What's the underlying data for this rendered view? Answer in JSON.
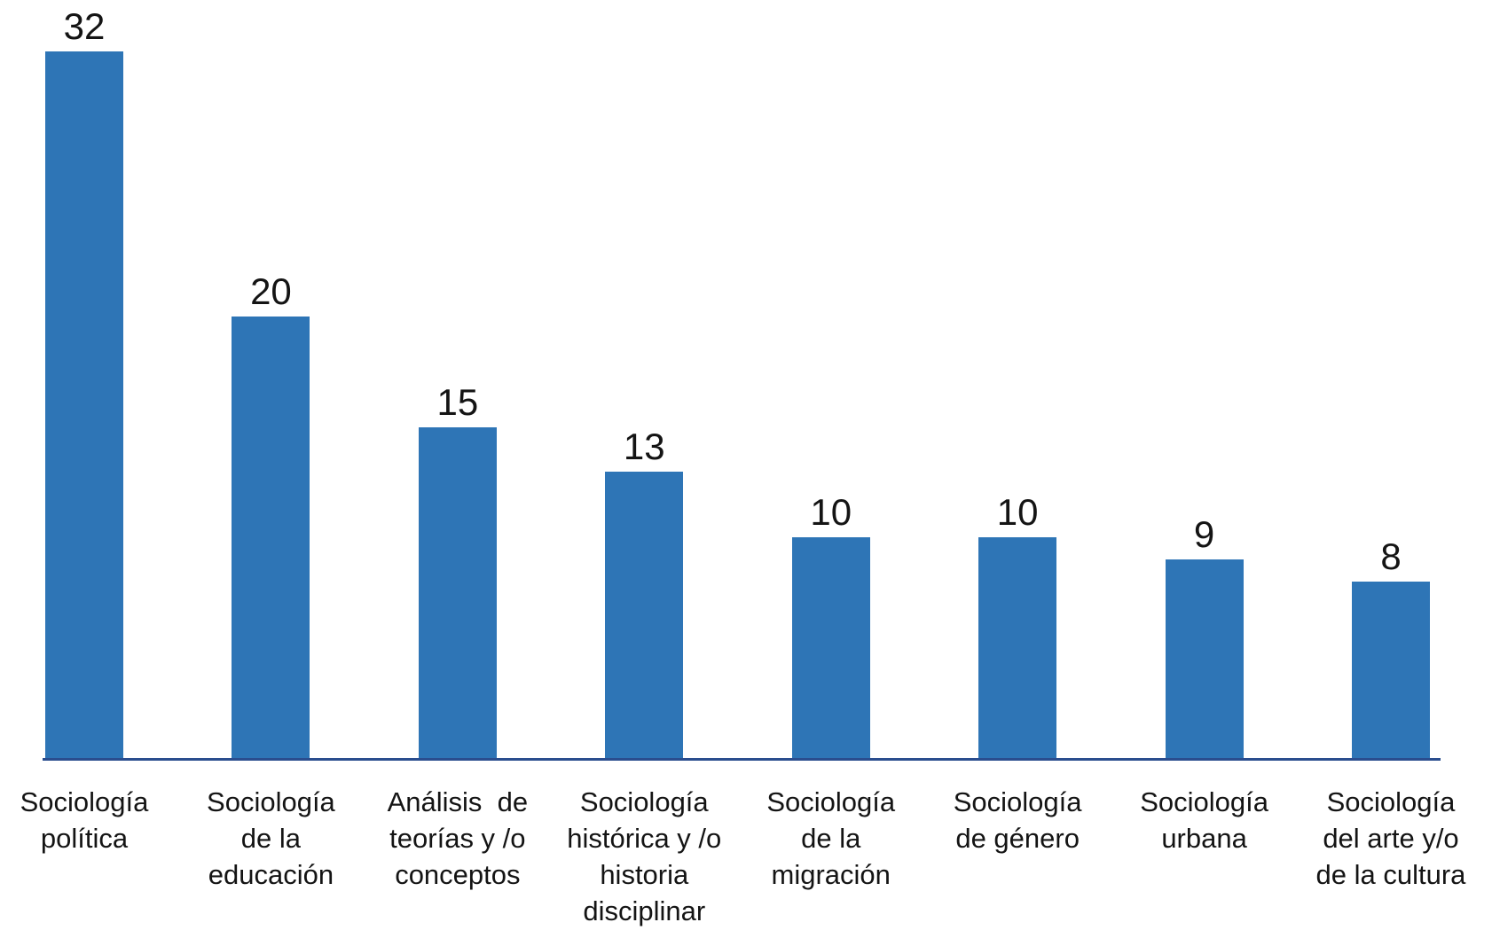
{
  "page": {
    "background": "#FFFFFF"
  },
  "chart_data": {
    "type": "bar",
    "title": "",
    "xlabel": "",
    "ylabel": "",
    "categories": [
      "Sociología política",
      "Sociología de la educación",
      "Análisis de teorías y /o conceptos",
      "Sociología histórica y /o historia disciplinar",
      "Sociología de la migración",
      "Sociología de género",
      "Sociología urbana",
      "Sociología del arte y/o de la cultura"
    ],
    "tick_label_lines": [
      [
        "Sociología",
        "política"
      ],
      [
        "Sociología",
        "de la",
        "educación"
      ],
      [
        "Análisis  de",
        "teorías y /o",
        "conceptos"
      ],
      [
        "Sociología",
        "histórica y /o",
        "historia",
        "disciplinar"
      ],
      [
        "Sociología",
        "de la",
        "migración"
      ],
      [
        "Sociología",
        "de género"
      ],
      [
        "Sociología",
        "urbana"
      ],
      [
        "Sociología",
        "del arte y/o",
        "de la cultura"
      ]
    ],
    "values": [
      32,
      20,
      15,
      13,
      10,
      10,
      9,
      8
    ],
    "ylim": [
      0,
      34
    ],
    "grid": false,
    "legend": "none",
    "y_axis_shown": false,
    "data_labels_shown": true,
    "colors": {
      "bar": "#2E75B6",
      "axis_line": "#2A4D8E",
      "label_text": "#141414",
      "background": "#FFFFFF"
    }
  }
}
